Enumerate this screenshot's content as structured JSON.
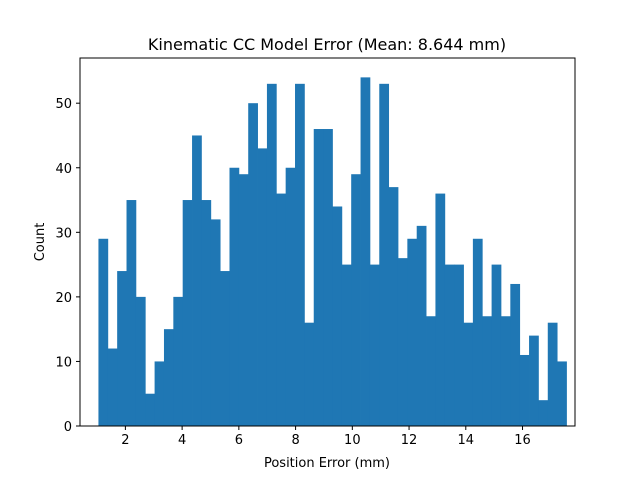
{
  "chart_data": {
    "type": "bar",
    "title": "Kinematic CC Model Error (Mean: 8.644 mm)",
    "xlabel": "Position Error (mm)",
    "ylabel": "Count",
    "xlim": [
      0.4,
      17.85
    ],
    "ylim": [
      0,
      57
    ],
    "x_ticks": [
      2,
      4,
      6,
      8,
      10,
      12,
      14,
      16
    ],
    "x_tick_labels": [
      "2",
      "4",
      "6",
      "8",
      "10",
      "12",
      "14",
      "16"
    ],
    "y_ticks": [
      0,
      10,
      20,
      30,
      40,
      50
    ],
    "y_tick_labels": [
      "0",
      "10",
      "20",
      "30",
      "40",
      "50"
    ],
    "bin_start": 1.05,
    "bin_width": 0.33,
    "values": [
      29,
      12,
      24,
      35,
      20,
      5,
      10,
      15,
      20,
      35,
      45,
      35,
      32,
      24,
      40,
      39,
      50,
      43,
      53,
      36,
      40,
      53,
      16,
      46,
      46,
      34,
      25,
      39,
      54,
      25,
      53,
      37,
      26,
      29,
      31,
      17,
      36,
      25,
      25,
      16,
      29,
      17,
      25,
      17,
      22,
      11,
      14,
      4,
      16,
      10
    ],
    "bar_color": "#1f77b4",
    "grid": false,
    "legend": "none"
  }
}
